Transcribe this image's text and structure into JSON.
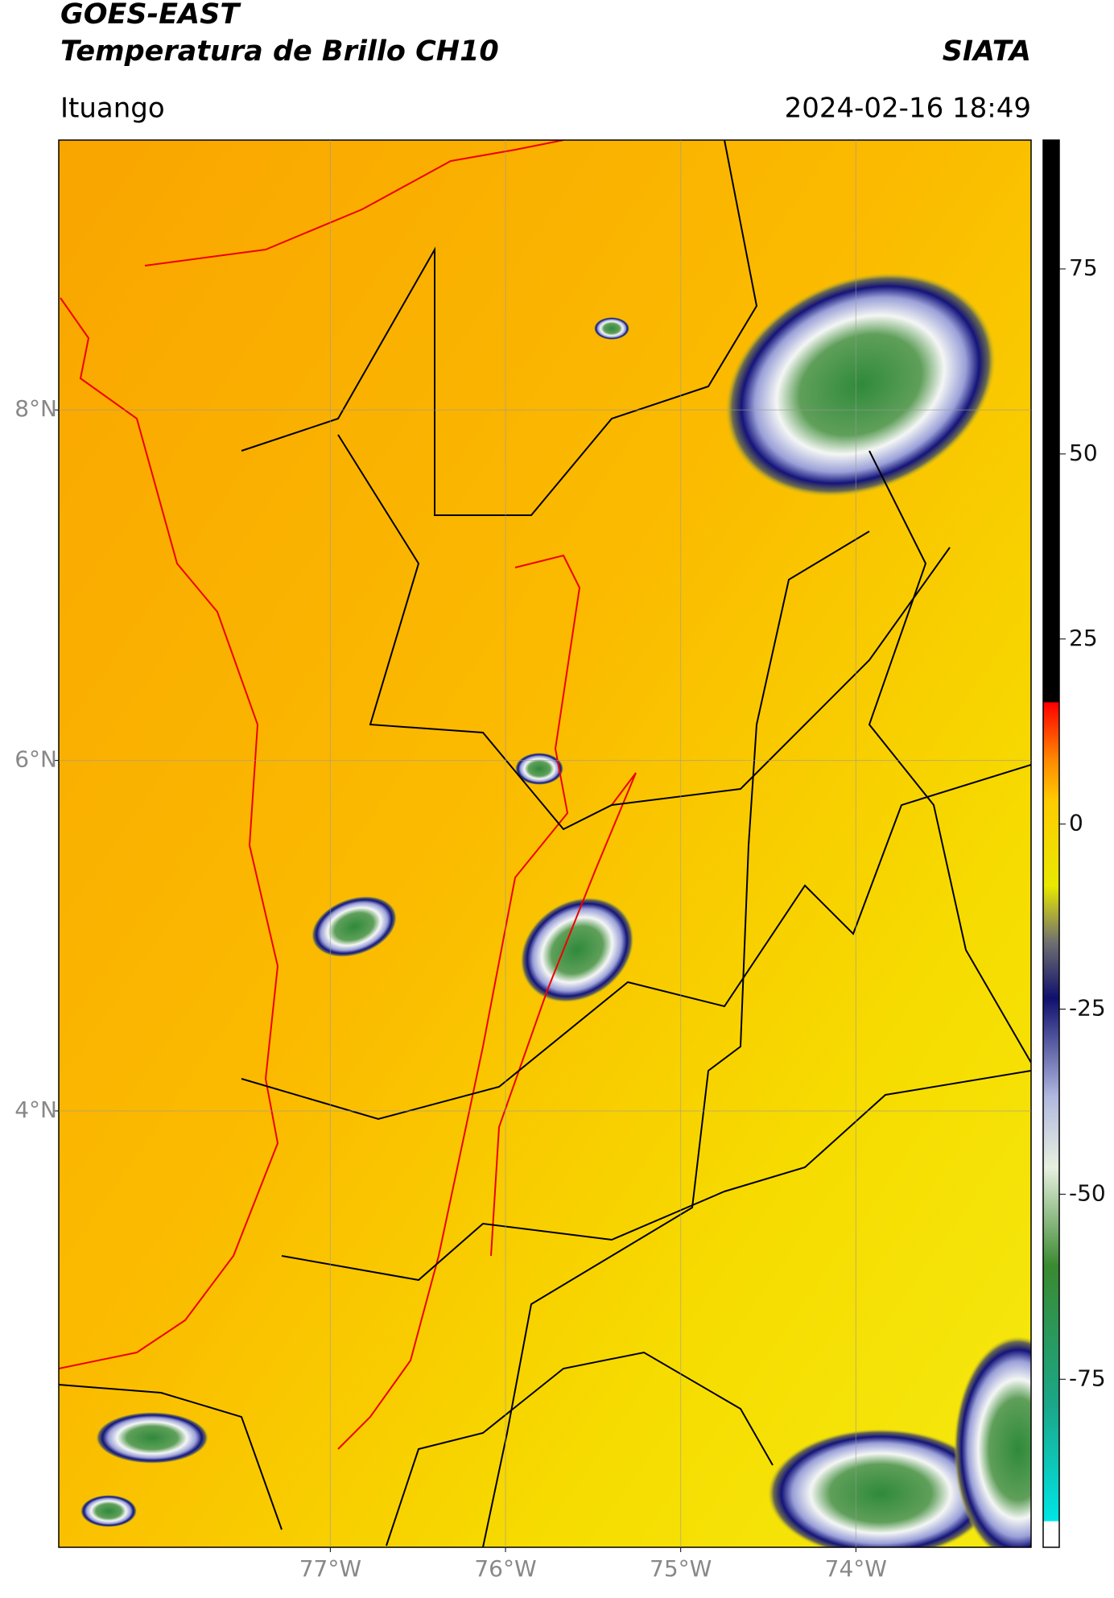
{
  "header": {
    "title": "GOES-EAST",
    "subtitle": "Temperatura de Brillo CH10",
    "brand": "SIATA",
    "location": "Ituango",
    "datetime": "2024-02-16 18:49"
  },
  "map": {
    "xlim": [
      -78.55,
      -73.0
    ],
    "ylim": [
      1.51,
      9.54
    ],
    "xticks": [
      {
        "value": -77,
        "label": "77°W"
      },
      {
        "value": -76,
        "label": "76°W"
      },
      {
        "value": -75,
        "label": "75°W"
      },
      {
        "value": -74,
        "label": "74°W"
      }
    ],
    "yticks": [
      {
        "value": 4,
        "label": "4°N"
      },
      {
        "value": 6,
        "label": "6°N"
      },
      {
        "value": 8,
        "label": "8°N"
      }
    ],
    "grid": true
  },
  "colorbar": {
    "lim": [
      -97.7,
      92.4
    ],
    "ticks": [
      -75,
      -50,
      -25,
      0,
      25,
      50,
      75
    ]
  }
}
